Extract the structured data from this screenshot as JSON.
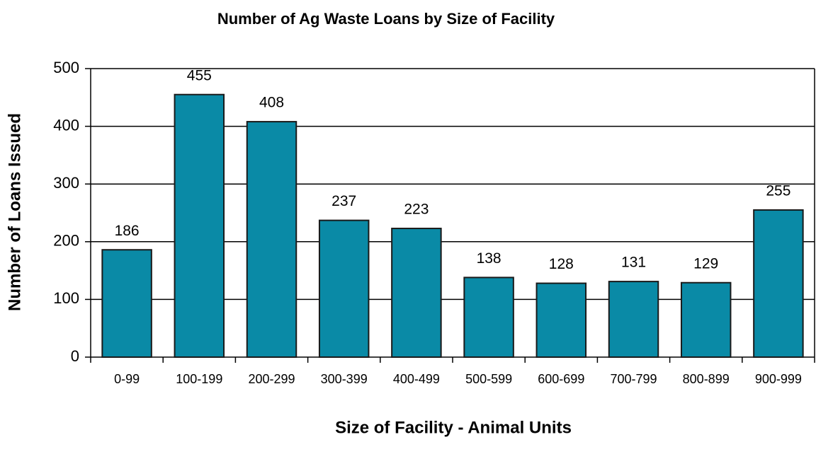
{
  "chart_data": {
    "type": "bar",
    "title": "Number of Ag Waste Loans by Size of Facility",
    "x_label": "Size of Facility - Animal Units",
    "y_label": "Number of Loans Issued",
    "categories": [
      "0-99",
      "100-199",
      "200-299",
      "300-399",
      "400-499",
      "500-599",
      "600-699",
      "700-799",
      "800-899",
      "900-999"
    ],
    "values": [
      186,
      455,
      408,
      237,
      223,
      138,
      128,
      131,
      129,
      255
    ],
    "color": "#0a8aa6",
    "ylim": [
      0,
      500
    ],
    "yticks": [
      0,
      100,
      200,
      300,
      400,
      500
    ],
    "grid": true
  }
}
